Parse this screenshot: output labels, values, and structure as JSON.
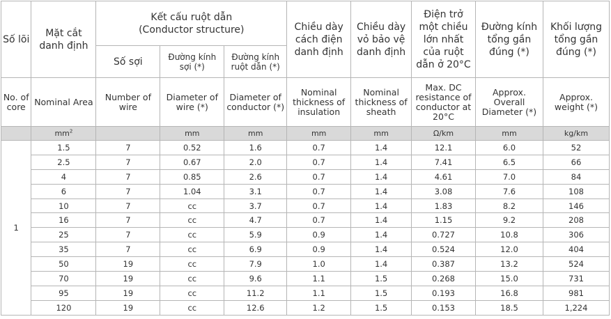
{
  "headers_vi": {
    "cores": "Số lõi",
    "area": "Mặt cắt danh định",
    "structure": "Kết cấu ruột dẫn",
    "structure_en": "(Conductor structure)",
    "wires": "Số sợi",
    "wire_dia": "Đường kính sợi (*)",
    "cond_dia": "Đường kính ruột dẫn (*)",
    "insulation": "Chiều dày cách điện danh định",
    "sheath": "Chiều dày vỏ bảo vệ danh định",
    "resistance": "Điện trở một chiều lớn nhất của ruột dẫn ở 20°C",
    "overall_dia": "Đường kính tổng gần đúng (*)",
    "weight": "Khối lượng tổng gần đúng (*)"
  },
  "headers_en": {
    "cores": "No. of core",
    "area": "Nominal Area",
    "wires": "Number of wire",
    "wire_dia": "Diameter of wire (*)",
    "cond_dia": "Diameter of conductor (*)",
    "insulation": "Nominal thickness of insulation",
    "sheath": "Nominal thickness of sheath",
    "resistance": "Max. DC resistance of conductor at 20°C",
    "overall_dia": "Approx. Overall Diameter (*)",
    "weight": "Approx. weight (*)"
  },
  "units": {
    "area": "mm",
    "area_sup": "2",
    "wire_dia": "mm",
    "cond_dia": "mm",
    "insulation": "mm",
    "sheath": "mm",
    "resistance": "Ω/km",
    "overall_dia": "mm",
    "weight": "kg/km"
  },
  "core_count": "1",
  "rows": [
    [
      "1.5",
      "7",
      "0.52",
      "1.6",
      "0.7",
      "1.4",
      "12.1",
      "6.0",
      "52"
    ],
    [
      "2.5",
      "7",
      "0.67",
      "2.0",
      "0.7",
      "1.4",
      "7.41",
      "6.5",
      "66"
    ],
    [
      "4",
      "7",
      "0.85",
      "2.6",
      "0.7",
      "1.4",
      "4.61",
      "7.0",
      "84"
    ],
    [
      "6",
      "7",
      "1.04",
      "3.1",
      "0.7",
      "1.4",
      "3.08",
      "7.6",
      "108"
    ],
    [
      "10",
      "7",
      "cc",
      "3.7",
      "0.7",
      "1.4",
      "1.83",
      "8.2",
      "146"
    ],
    [
      "16",
      "7",
      "cc",
      "4.7",
      "0.7",
      "1.4",
      "1.15",
      "9.2",
      "208"
    ],
    [
      "25",
      "7",
      "cc",
      "5.9",
      "0.9",
      "1.4",
      "0.727",
      "10.8",
      "306"
    ],
    [
      "35",
      "7",
      "cc",
      "6.9",
      "0.9",
      "1.4",
      "0.524",
      "12.0",
      "404"
    ],
    [
      "50",
      "19",
      "cc",
      "7.9",
      "1.0",
      "1.4",
      "0.387",
      "13.2",
      "524"
    ],
    [
      "70",
      "19",
      "cc",
      "9.6",
      "1.1",
      "1.5",
      "0.268",
      "15.0",
      "731"
    ],
    [
      "95",
      "19",
      "cc",
      "11.2",
      "1.1",
      "1.5",
      "0.193",
      "16.8",
      "981"
    ],
    [
      "120",
      "19",
      "cc",
      "12.6",
      "1.2",
      "1.5",
      "0.153",
      "18.5",
      "1,224"
    ]
  ]
}
